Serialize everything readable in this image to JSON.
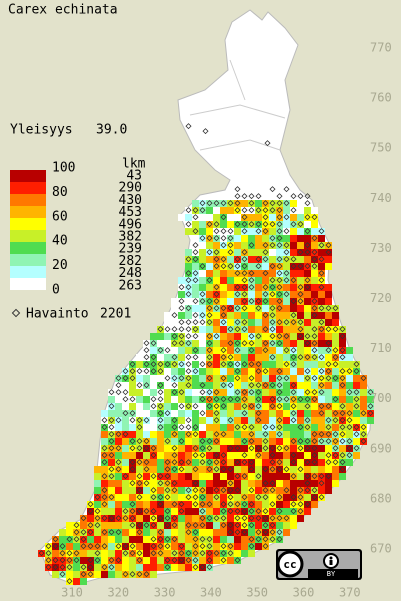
{
  "title": "Carex echinata",
  "index": {
    "label": "Yleisyys",
    "value": "39.0"
  },
  "legend": {
    "scale": [
      "100",
      "80",
      "60",
      "40",
      "20",
      "0"
    ],
    "colors": [
      "#b80000",
      "#ff1e00",
      "#ff7800",
      "#ffb400",
      "#ffff00",
      "#c8f028",
      "#50dc50",
      "#90f4b4",
      "#b4ffff",
      "#ffffff"
    ],
    "count_header": "lkm",
    "counts": [
      "43",
      "290",
      "430",
      "453",
      "496",
      "382",
      "239",
      "282",
      "248",
      "263"
    ]
  },
  "observations": {
    "label": "Havainto",
    "value": "2201"
  },
  "axes": {
    "y_ticks": [
      "770",
      "760",
      "750",
      "740",
      "730",
      "720",
      "710",
      "700",
      "690",
      "680",
      "670"
    ],
    "x_ticks": [
      "310",
      "320",
      "330",
      "340",
      "350",
      "360",
      "370"
    ]
  },
  "license": {
    "symbol": "cc",
    "text": "BY"
  }
}
